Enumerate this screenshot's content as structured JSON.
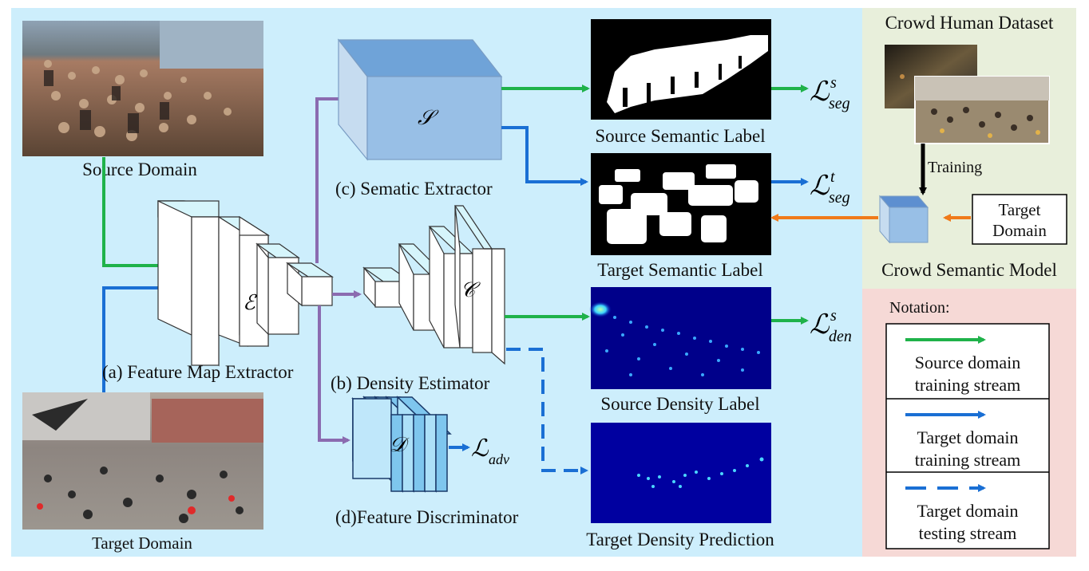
{
  "images": {
    "source_domain": {
      "caption": "Source Domain"
    },
    "target_domain": {
      "caption": "Target Domain"
    }
  },
  "modules": {
    "feature_map_extractor": {
      "label": "(a) Feature Map Extractor",
      "symbol": "ℰ"
    },
    "density_estimator": {
      "label": "(b) Density Estimator",
      "symbol": "𝒞"
    },
    "semantic_extractor": {
      "label": "(c) Sematic Extractor",
      "symbol": "𝒮"
    },
    "feature_discriminator": {
      "label": "(d)Feature Discriminator",
      "symbol": "𝒟"
    }
  },
  "outputs": {
    "source_semantic_label": "Source Semantic Label",
    "target_semantic_label": "Target Semantic Label",
    "source_density_label": "Source Density Label",
    "target_density_prediction": "Target Density Prediction"
  },
  "losses": {
    "seg_s": {
      "base": "ℒ",
      "sub": "seg",
      "sup": "s"
    },
    "seg_t": {
      "base": "ℒ",
      "sub": "seg",
      "sup": "t"
    },
    "den_s": {
      "base": "ℒ",
      "sub": "den",
      "sup": "s"
    },
    "adv": {
      "base": "ℒ",
      "sub": "adv"
    }
  },
  "crowd_panel": {
    "title": "Crowd Human Dataset",
    "training": "Training",
    "model": "Crowd Semantic Model",
    "target_domain_line1": "Target",
    "target_domain_line2": "Domain"
  },
  "notation": {
    "title": "Notation:",
    "items": [
      {
        "line1": "Source domain",
        "line2": "training stream"
      },
      {
        "line1": "Target domain",
        "line2": "training stream"
      },
      {
        "line1": "Target domain",
        "line2": "testing stream"
      }
    ]
  },
  "colors": {
    "background": "#cdeefc",
    "green": "#1fb24a",
    "blue": "#1a6fd4",
    "purple": "#8b6bb0",
    "orange": "#f07a1a",
    "crowd_panel_bg": "#e8efdb",
    "notation_bg": "#f6d9d6"
  }
}
